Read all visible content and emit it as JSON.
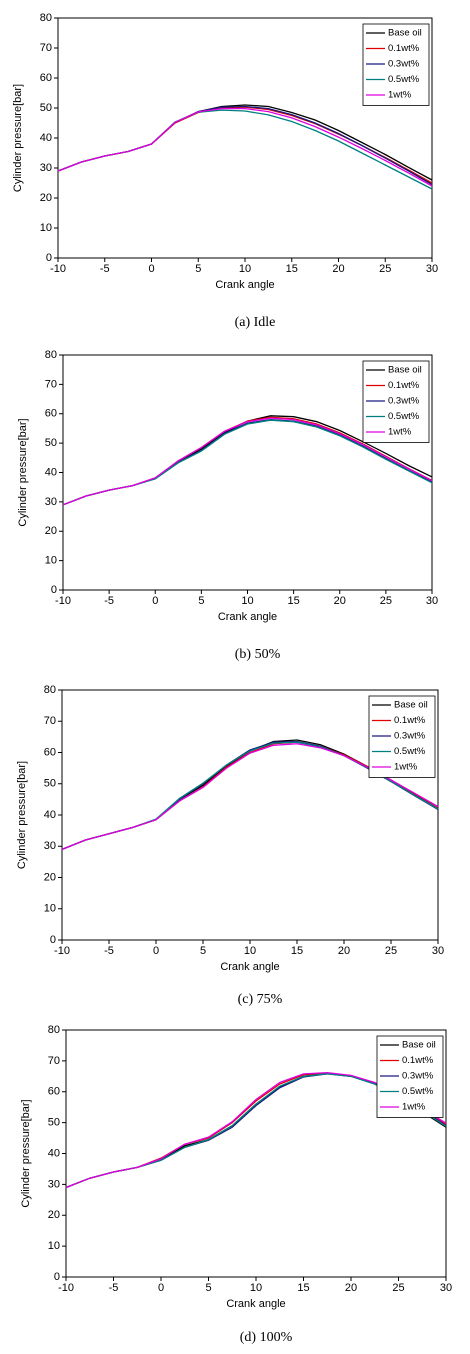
{
  "chart_data": [
    {
      "type": "line",
      "caption": "(a)  Idle",
      "xlabel": "Crank angle",
      "ylabel": "Cylinder pressure[bar]",
      "x": [
        -10,
        -7.5,
        -5,
        -2.5,
        0,
        2.5,
        5,
        7.5,
        10,
        12.5,
        15,
        17.5,
        20,
        22.5,
        25,
        27.5,
        30
      ],
      "xlim": [
        -10,
        30
      ],
      "xticks": [
        -10,
        -5,
        0,
        5,
        10,
        15,
        20,
        25,
        30
      ],
      "ylim": [
        0,
        80
      ],
      "yticks": [
        0,
        10,
        20,
        30,
        40,
        50,
        60,
        70,
        80
      ],
      "legend": "upper right",
      "series": [
        {
          "name": "Base oil",
          "color": "#000000",
          "values": [
            29,
            32,
            34,
            35.5,
            38,
            45,
            48.8,
            50.5,
            51,
            50.5,
            48.5,
            46,
            42.5,
            38.5,
            34.5,
            30.2,
            26
          ]
        },
        {
          "name": "0.1wt%",
          "color": "#e00000",
          "values": [
            29,
            32,
            34,
            35.5,
            38,
            45,
            48.5,
            50,
            50.3,
            49.5,
            47.5,
            44.8,
            41.3,
            37.5,
            33.5,
            29.3,
            25
          ]
        },
        {
          "name": "0.3wt%",
          "color": "#1a1a80",
          "values": [
            29,
            32,
            34,
            35.5,
            38,
            45.2,
            48.8,
            50.3,
            50.5,
            49.8,
            47.8,
            45,
            41.5,
            37.5,
            33.3,
            29,
            24.5
          ]
        },
        {
          "name": "0.5wt%",
          "color": "#008080",
          "values": [
            29,
            32,
            34,
            35.5,
            38,
            45.3,
            48.6,
            49.3,
            49,
            47.7,
            45.5,
            42.5,
            39,
            35,
            31,
            27,
            23
          ]
        },
        {
          "name": "1wt%",
          "color": "#e000e0",
          "values": [
            29,
            32,
            34,
            35.5,
            38,
            45.2,
            48.7,
            49.8,
            49.8,
            48.8,
            46.7,
            43.8,
            40.3,
            36.5,
            32.5,
            28.3,
            24
          ]
        }
      ]
    },
    {
      "type": "line",
      "caption": "(b)  50%",
      "xlabel": "Crank angle",
      "ylabel": "Cylinder pressure[bar]",
      "x": [
        -10,
        -7.5,
        -5,
        -2.5,
        0,
        2.5,
        5,
        7.5,
        10,
        12.5,
        15,
        17.5,
        20,
        22.5,
        25,
        27.5,
        30
      ],
      "xlim": [
        -10,
        30
      ],
      "xticks": [
        -10,
        -5,
        0,
        5,
        10,
        15,
        20,
        25,
        30
      ],
      "ylim": [
        0,
        80
      ],
      "yticks": [
        0,
        10,
        20,
        30,
        40,
        50,
        60,
        70,
        80
      ],
      "legend": "upper right",
      "series": [
        {
          "name": "Base oil",
          "color": "#000000",
          "values": [
            29,
            32,
            34,
            35.5,
            38,
            43.5,
            48,
            53.5,
            57.5,
            59.3,
            59,
            57.3,
            54.3,
            50.5,
            46.5,
            42.3,
            38.5
          ]
        },
        {
          "name": "0.1wt%",
          "color": "#e00000",
          "values": [
            29,
            32,
            34,
            35.5,
            38,
            44,
            48.5,
            54,
            57.5,
            58.8,
            58.3,
            56.5,
            53.5,
            49.7,
            45.5,
            41.3,
            37.3
          ]
        },
        {
          "name": "0.3wt%",
          "color": "#1a1a80",
          "values": [
            29,
            32,
            34,
            35.5,
            38,
            43.5,
            47.5,
            53.3,
            56.8,
            58,
            57.5,
            55.8,
            52.8,
            49,
            44.8,
            40.7,
            36.8
          ]
        },
        {
          "name": "0.5wt%",
          "color": "#008080",
          "values": [
            29,
            32,
            34,
            35.5,
            37.8,
            43.3,
            47.3,
            53,
            56.5,
            57.8,
            57.3,
            55.5,
            52.5,
            48.7,
            44.5,
            40.5,
            36.5
          ]
        },
        {
          "name": "1wt%",
          "color": "#e000e0",
          "values": [
            29,
            32,
            34,
            35.5,
            38.2,
            44,
            48.5,
            54,
            57.3,
            58.5,
            58,
            56.2,
            53.2,
            49.5,
            45.3,
            41.2,
            37.2
          ]
        }
      ]
    },
    {
      "type": "line",
      "caption": "(c)  75%",
      "xlabel": "Crank angle",
      "ylabel": "Cylinder pressure[bar]",
      "x": [
        -10,
        -7.5,
        -5,
        -2.5,
        0,
        2.5,
        5,
        7.5,
        10,
        12.5,
        15,
        17.5,
        20,
        22.5,
        25,
        27.5,
        30
      ],
      "xlim": [
        -10,
        30
      ],
      "xticks": [
        -10,
        -5,
        0,
        5,
        10,
        15,
        20,
        25,
        30
      ],
      "ylim": [
        0,
        80
      ],
      "yticks": [
        0,
        10,
        20,
        30,
        40,
        50,
        60,
        70,
        80
      ],
      "legend": "upper right",
      "series": [
        {
          "name": "Base oil",
          "color": "#000000",
          "values": [
            29,
            32,
            34,
            36,
            38.5,
            45,
            49.5,
            55.5,
            60.5,
            63.5,
            64,
            62.5,
            59.5,
            55.5,
            51,
            46.5,
            42
          ]
        },
        {
          "name": "0.1wt%",
          "color": "#e00000",
          "values": [
            29,
            32,
            34,
            36,
            38.5,
            44.5,
            49,
            55.3,
            60,
            62.8,
            63.3,
            62,
            59.3,
            55.5,
            51.2,
            46.8,
            42.5
          ]
        },
        {
          "name": "0.3wt%",
          "color": "#1a1a80",
          "values": [
            29,
            32,
            34,
            36,
            38.5,
            45,
            50,
            56,
            60.8,
            63.3,
            63.5,
            62,
            59,
            55,
            50.7,
            46.2,
            41.8
          ]
        },
        {
          "name": "0.5wt%",
          "color": "#008080",
          "values": [
            29,
            32,
            34,
            36,
            38.7,
            45.3,
            50.2,
            56,
            60.5,
            63,
            63.3,
            61.8,
            59,
            55.2,
            50.8,
            46.3,
            42
          ]
        },
        {
          "name": "1wt%",
          "color": "#e000e0",
          "values": [
            29,
            32,
            34,
            36,
            38.5,
            44.5,
            48.8,
            55,
            59.8,
            62.3,
            62.8,
            61.5,
            59,
            55.3,
            51.2,
            47,
            42.7
          ]
        }
      ]
    },
    {
      "type": "line",
      "caption": "(d)  100%",
      "xlabel": "Crank angle",
      "ylabel": "Cylinder pressure[bar]",
      "x": [
        -10,
        -7.5,
        -5,
        -2.5,
        0,
        2.5,
        5,
        7.5,
        10,
        12.5,
        15,
        17.5,
        20,
        22.5,
        25,
        27.5,
        30
      ],
      "xlim": [
        -10,
        30
      ],
      "xticks": [
        -10,
        -5,
        0,
        5,
        10,
        15,
        20,
        25,
        30
      ],
      "ylim": [
        0,
        80
      ],
      "yticks": [
        0,
        10,
        20,
        30,
        40,
        50,
        60,
        70,
        80
      ],
      "legend": "upper right",
      "series": [
        {
          "name": "Base oil",
          "color": "#000000",
          "values": [
            29,
            32,
            34,
            35.5,
            38,
            42.5,
            44.5,
            49,
            56,
            61.5,
            65,
            66,
            65,
            62.5,
            58.5,
            53.5,
            48.5
          ]
        },
        {
          "name": "0.1wt%",
          "color": "#e00000",
          "values": [
            29,
            32,
            34,
            35.5,
            38.5,
            43,
            45,
            50,
            57,
            62.5,
            65.5,
            66,
            65,
            62.7,
            59,
            54.2,
            49.5
          ]
        },
        {
          "name": "0.3wt%",
          "color": "#1a1a80",
          "values": [
            29,
            32,
            34,
            35.5,
            37.8,
            42,
            44.3,
            48.5,
            55.5,
            61.3,
            64.8,
            65.8,
            65,
            62.7,
            58.7,
            54,
            49
          ]
        },
        {
          "name": "0.5wt%",
          "color": "#008080",
          "values": [
            29,
            32,
            34,
            35.5,
            37.8,
            42,
            44.5,
            49,
            56,
            61.8,
            65,
            65.8,
            65,
            62.5,
            58.5,
            53.8,
            48.8
          ]
        },
        {
          "name": "1wt%",
          "color": "#e000e0",
          "values": [
            29,
            32,
            34,
            35.5,
            38.3,
            43,
            45.3,
            50.3,
            57.5,
            63,
            65.8,
            66.2,
            65.3,
            63,
            59.3,
            54.5,
            49.8
          ]
        }
      ]
    }
  ]
}
